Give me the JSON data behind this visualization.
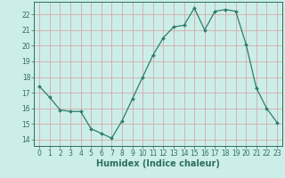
{
  "x": [
    0,
    1,
    2,
    3,
    4,
    5,
    6,
    7,
    8,
    9,
    10,
    11,
    12,
    13,
    14,
    15,
    16,
    17,
    18,
    19,
    20,
    21,
    22,
    23
  ],
  "y": [
    17.4,
    16.7,
    15.9,
    15.8,
    15.8,
    14.7,
    14.4,
    14.1,
    15.2,
    16.6,
    18.0,
    19.4,
    20.5,
    21.2,
    21.3,
    22.4,
    21.0,
    22.2,
    22.3,
    22.2,
    20.1,
    17.3,
    16.0,
    15.1
  ],
  "line_color": "#2e7d6e",
  "marker_color": "#2e7d6e",
  "bg_color": "#cceee8",
  "grid_color": "#d4aaaa",
  "xlabel": "Humidex (Indice chaleur)",
  "ylim": [
    13.6,
    22.8
  ],
  "xlim": [
    -0.5,
    23.5
  ],
  "yticks": [
    14,
    15,
    16,
    17,
    18,
    19,
    20,
    21,
    22
  ],
  "xticks": [
    0,
    1,
    2,
    3,
    4,
    5,
    6,
    7,
    8,
    9,
    10,
    11,
    12,
    13,
    14,
    15,
    16,
    17,
    18,
    19,
    20,
    21,
    22,
    23
  ],
  "label_color": "#2e6e60",
  "tick_color": "#2e6e60",
  "axis_color": "#2e6e60",
  "font_size": 5.5,
  "xlabel_fontsize": 7.0
}
